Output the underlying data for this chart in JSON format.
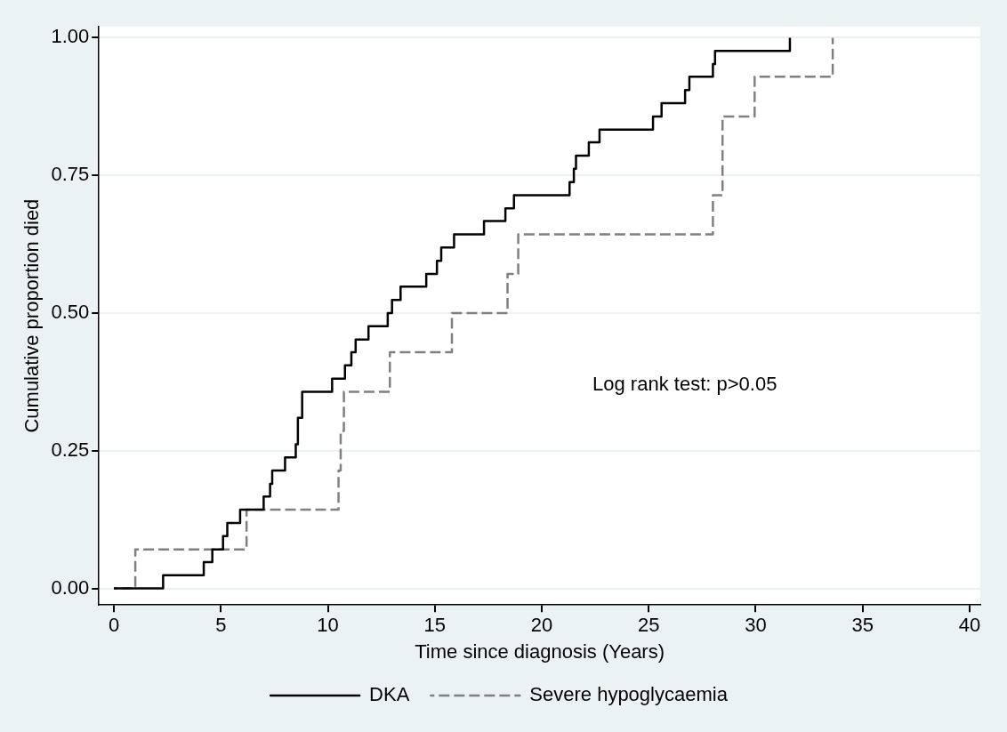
{
  "chart_data": {
    "type": "step",
    "xlabel": "Time since diagnosis (Years)",
    "ylabel": "Cumulative proportion died",
    "xlim": [
      -0.7,
      40.5
    ],
    "xticks": [
      0,
      5,
      10,
      15,
      20,
      25,
      30,
      35,
      40
    ],
    "ylim": [
      -0.03,
      1.02
    ],
    "yticks": [
      {
        "value": 0,
        "label": "0.00"
      },
      {
        "value": 0.25,
        "label": "0.25"
      },
      {
        "value": 0.5,
        "label": "0.50"
      },
      {
        "value": 0.75,
        "label": "0.75"
      },
      {
        "value": 1,
        "label": "1.00"
      }
    ],
    "grid": "y",
    "legend": "bottom",
    "marker": "none",
    "annotations": [
      "Log rank test: p>0.05"
    ],
    "series": [
      {
        "name": "DKA",
        "color": "#000000",
        "line_style": "solid",
        "x": [
          0,
          2.3,
          4.2,
          4.6,
          5.1,
          5.3,
          5.9,
          7.0,
          7.3,
          7.4,
          8.0,
          8.5,
          8.6,
          8.8,
          10.2,
          10.8,
          11.1,
          11.3,
          11.9,
          12.8,
          13.0,
          13.4,
          14.6,
          15.1,
          15.3,
          15.9,
          17.3,
          18.3,
          18.7,
          21.3,
          21.5,
          21.6,
          22.2,
          22.7,
          25.2,
          25.6,
          26.7,
          26.9,
          28.0,
          28.1,
          31.6
        ],
        "values": [
          0,
          0.024,
          0.048,
          0.071,
          0.095,
          0.119,
          0.143,
          0.167,
          0.19,
          0.214,
          0.238,
          0.262,
          0.31,
          0.357,
          0.381,
          0.405,
          0.429,
          0.452,
          0.476,
          0.5,
          0.524,
          0.548,
          0.571,
          0.595,
          0.619,
          0.643,
          0.667,
          0.69,
          0.714,
          0.738,
          0.762,
          0.786,
          0.81,
          0.833,
          0.857,
          0.881,
          0.905,
          0.929,
          0.952,
          0.976,
          1.0
        ]
      },
      {
        "name": "Severe hypoglycaemia",
        "color": "#808080",
        "line_style": "dashed",
        "x": [
          0,
          1.0,
          6.2,
          10.5,
          10.6,
          10.75,
          12.9,
          15.8,
          18.4,
          18.9,
          28.0,
          28.45,
          29.95,
          33.6
        ],
        "values": [
          0,
          0.071,
          0.143,
          0.214,
          0.286,
          0.357,
          0.429,
          0.5,
          0.571,
          0.643,
          0.714,
          0.857,
          0.929,
          1.0
        ]
      }
    ]
  }
}
